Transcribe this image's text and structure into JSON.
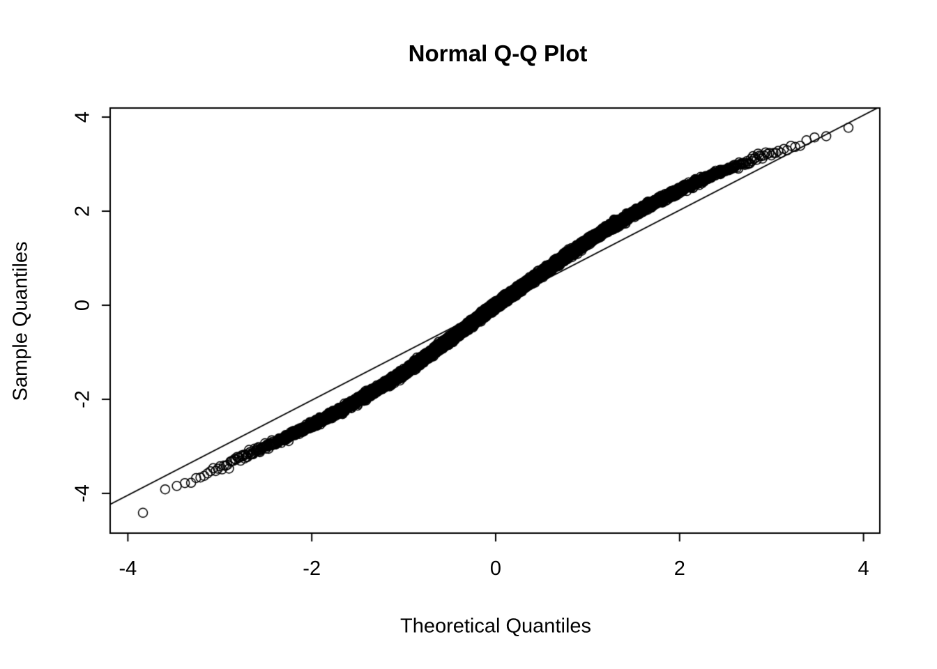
{
  "chart_data": {
    "type": "scatter",
    "title": "Normal Q-Q Plot",
    "xlabel": "Theoretical Quantiles",
    "ylabel": "Sample Quantiles",
    "xlim": [
      -4.2,
      4.2
    ],
    "ylim": [
      -4.85,
      4.2
    ],
    "x_ticks": [
      -4,
      -2,
      0,
      2,
      4
    ],
    "y_ticks": [
      -4,
      -2,
      0,
      2,
      4
    ],
    "grid": false,
    "legend": null,
    "background_color": "#ffffff",
    "point_color": "#000000",
    "line_color": "#000000",
    "n_points": 10000,
    "seed": 42,
    "jitter_sd": 0.035,
    "point_style": {
      "marker": "open-circle",
      "radius_px": 6.5,
      "stroke_px": 1.5
    },
    "reference_line": {
      "slope": 1.01,
      "intercept": 0.0
    },
    "qq_curve_knots": [
      [
        -4.2,
        -4.75
      ],
      [
        -3.9,
        -4.5
      ],
      [
        -3.6,
        -3.93
      ],
      [
        -3.45,
        -3.82
      ],
      [
        -3.3,
        -3.7
      ],
      [
        -3.15,
        -3.57
      ],
      [
        -3.0,
        -3.45
      ],
      [
        -2.75,
        -3.22
      ],
      [
        -2.5,
        -3.0
      ],
      [
        -2.25,
        -2.78
      ],
      [
        -2.0,
        -2.55
      ],
      [
        -1.75,
        -2.3
      ],
      [
        -1.5,
        -2.02
      ],
      [
        -1.25,
        -1.74
      ],
      [
        -1.0,
        -1.44
      ],
      [
        -0.75,
        -1.08
      ],
      [
        -0.5,
        -0.73
      ],
      [
        -0.25,
        -0.37
      ],
      [
        0.0,
        0.0
      ],
      [
        0.25,
        0.34
      ],
      [
        0.5,
        0.68
      ],
      [
        0.75,
        1.02
      ],
      [
        1.0,
        1.36
      ],
      [
        1.25,
        1.66
      ],
      [
        1.5,
        1.95
      ],
      [
        1.75,
        2.21
      ],
      [
        2.0,
        2.45
      ],
      [
        2.25,
        2.67
      ],
      [
        2.5,
        2.87
      ],
      [
        2.75,
        3.07
      ],
      [
        2.9,
        3.18
      ],
      [
        3.1,
        3.3
      ],
      [
        3.3,
        3.42
      ],
      [
        3.5,
        3.55
      ],
      [
        3.7,
        3.7
      ],
      [
        3.9,
        3.87
      ],
      [
        4.2,
        4.15
      ]
    ]
  }
}
